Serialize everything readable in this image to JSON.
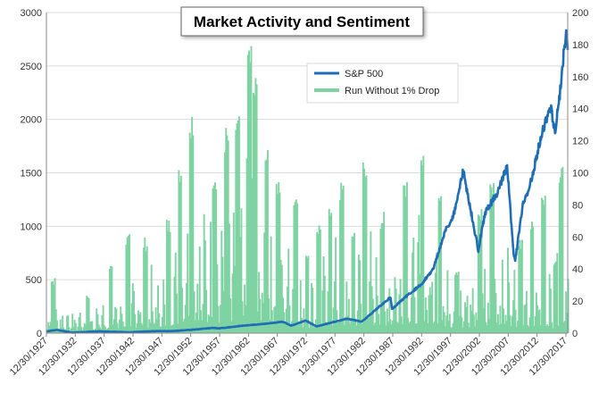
{
  "chart_data": {
    "type": "bar+line",
    "title": "Market Activity and Sentiment",
    "left_axis": {
      "min": 0,
      "max": 3000,
      "ticks": [
        "0",
        "500",
        "1000",
        "1500",
        "2000",
        "2500",
        "3000"
      ]
    },
    "right_axis": {
      "min": 0,
      "max": 200,
      "ticks": [
        "0",
        "20",
        "40",
        "60",
        "80",
        "100",
        "120",
        "140",
        "160",
        "180",
        "200"
      ]
    },
    "x_labels": [
      "12/30/1927",
      "12/30/1932",
      "12/30/1937",
      "12/30/1942",
      "12/30/1947",
      "12/30/1952",
      "12/30/1957",
      "12/30/1962",
      "12/30/1967",
      "12/30/1972",
      "12/30/1977",
      "12/30/1982",
      "12/30/1987",
      "12/30/1992",
      "12/30/1997",
      "12/30/2002",
      "12/30/2007",
      "12/30/2012",
      "12/30/2017"
    ],
    "x_range": [
      1927.99,
      2018.3
    ],
    "grid": "horizontal",
    "legend_position": "top-center",
    "series": [
      {
        "name": "S&P 500",
        "axis": "left",
        "color": "#1f6eb5",
        "points": [
          [
            1927.99,
            17
          ],
          [
            1929.7,
            31
          ],
          [
            1932.5,
            5
          ],
          [
            1937,
            17
          ],
          [
            1942.3,
            8
          ],
          [
            1946.4,
            19
          ],
          [
            1950,
            20
          ],
          [
            1954,
            35
          ],
          [
            1956.6,
            49
          ],
          [
            1958,
            45
          ],
          [
            1962,
            70
          ],
          [
            1966,
            88
          ],
          [
            1968.9,
            108
          ],
          [
            1970.4,
            70
          ],
          [
            1972.9,
            118
          ],
          [
            1974.8,
            63
          ],
          [
            1980,
            135
          ],
          [
            1982.6,
            108
          ],
          [
            1987.6,
            336
          ],
          [
            1987.85,
            224
          ],
          [
            1990,
            330
          ],
          [
            1993,
            460
          ],
          [
            1995,
            600
          ],
          [
            1997,
            950
          ],
          [
            1998.5,
            1100
          ],
          [
            2000.2,
            1520
          ],
          [
            2001.5,
            1150
          ],
          [
            2002.8,
            777
          ],
          [
            2004,
            1130
          ],
          [
            2006,
            1300
          ],
          [
            2007.8,
            1565
          ],
          [
            2008.9,
            750
          ],
          [
            2009.2,
            676
          ],
          [
            2010.5,
            1190
          ],
          [
            2011.5,
            1320
          ],
          [
            2013,
            1680
          ],
          [
            2014.5,
            2000
          ],
          [
            2015.5,
            2100
          ],
          [
            2016.1,
            1850
          ],
          [
            2017,
            2280
          ],
          [
            2018.1,
            2870
          ],
          [
            2018.3,
            2650
          ]
        ]
      },
      {
        "name": "Run Without 1% Drop",
        "axis": "right",
        "color": "#7fd3a3",
        "type": "bar",
        "peaks": [
          [
            1929,
            35
          ],
          [
            1935,
            25
          ],
          [
            1939,
            44
          ],
          [
            1942,
            62
          ],
          [
            1945,
            60
          ],
          [
            1949,
            72
          ],
          [
            1951,
            110
          ],
          [
            1953,
            143
          ],
          [
            1957,
            105
          ],
          [
            1959,
            130
          ],
          [
            1961,
            137
          ],
          [
            1963,
            186
          ],
          [
            1964,
            162
          ],
          [
            1966,
            123
          ],
          [
            1968,
            98
          ],
          [
            1971,
            90
          ],
          [
            1973,
            53
          ],
          [
            1975,
            70
          ],
          [
            1977,
            85
          ],
          [
            1979,
            95
          ],
          [
            1981,
            67
          ],
          [
            1983,
            113
          ],
          [
            1986,
            76
          ],
          [
            1990,
            100
          ],
          [
            1993,
            112
          ],
          [
            1996,
            95
          ],
          [
            1999,
            42
          ],
          [
            2003,
            80
          ],
          [
            2005,
            102
          ],
          [
            2010,
            60
          ],
          [
            2012,
            75
          ],
          [
            2014,
            88
          ],
          [
            2016,
            50
          ],
          [
            2017,
            110
          ]
        ]
      }
    ]
  }
}
